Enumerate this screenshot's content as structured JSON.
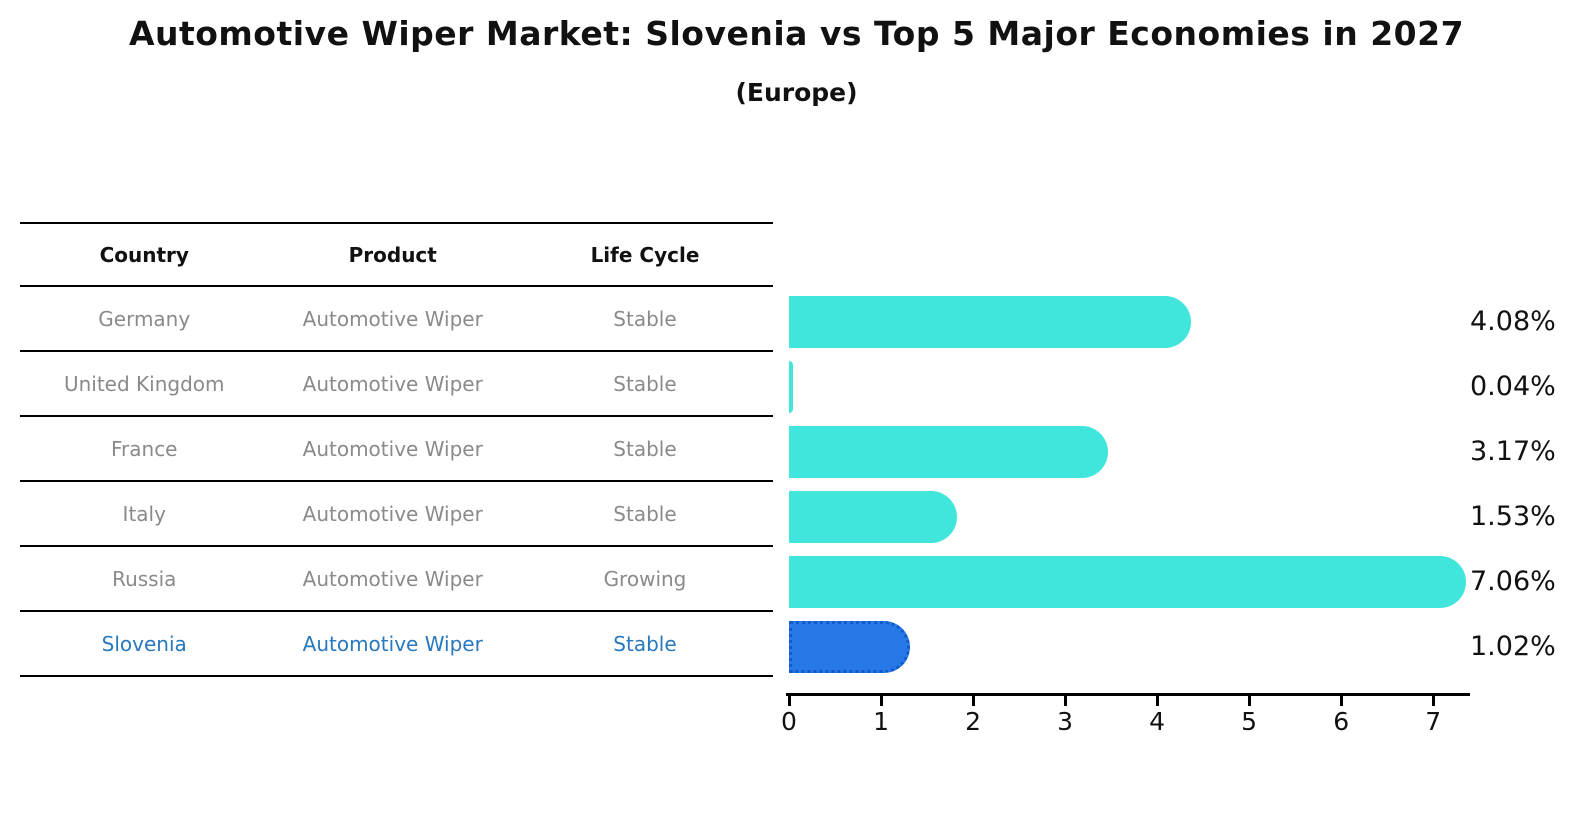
{
  "chart_data": {
    "type": "bar",
    "orientation": "horizontal",
    "title": "Automotive Wiper Market: Slovenia vs Top 5 Major Economies in 2027",
    "subtitle": "(Europe)",
    "categories": [
      "Germany",
      "United Kingdom",
      "France",
      "Italy",
      "Russia",
      "Slovenia"
    ],
    "values": [
      4.08,
      0.04,
      3.17,
      1.53,
      7.06,
      1.02
    ],
    "value_labels": [
      "4.08%",
      "0.04%",
      "3.17%",
      "1.53%",
      "7.06%",
      "1.02%"
    ],
    "units": "percent",
    "xlim": [
      0,
      7.4
    ],
    "xticks": [
      0,
      1,
      2,
      3,
      4,
      5,
      6,
      7
    ],
    "grid": false,
    "legend": false,
    "highlight_index": 5,
    "bar_color": "#40E5DC",
    "highlight_bar_color": "#2679E6",
    "highlight_text_color": "#2878BE",
    "axis_color": "#000000"
  },
  "table": {
    "headers": [
      "Country",
      "Product",
      "Life Cycle"
    ],
    "rows": [
      {
        "country": "Germany",
        "product": "Automotive Wiper",
        "life_cycle": "Stable"
      },
      {
        "country": "United Kingdom",
        "product": "Automotive Wiper",
        "life_cycle": "Stable"
      },
      {
        "country": "France",
        "product": "Automotive Wiper",
        "life_cycle": "Stable"
      },
      {
        "country": "Italy",
        "product": "Automotive Wiper",
        "life_cycle": "Stable"
      },
      {
        "country": "Russia",
        "product": "Automotive Wiper",
        "life_cycle": "Growing"
      },
      {
        "country": "Slovenia",
        "product": "Automotive Wiper",
        "life_cycle": "Stable"
      }
    ]
  }
}
